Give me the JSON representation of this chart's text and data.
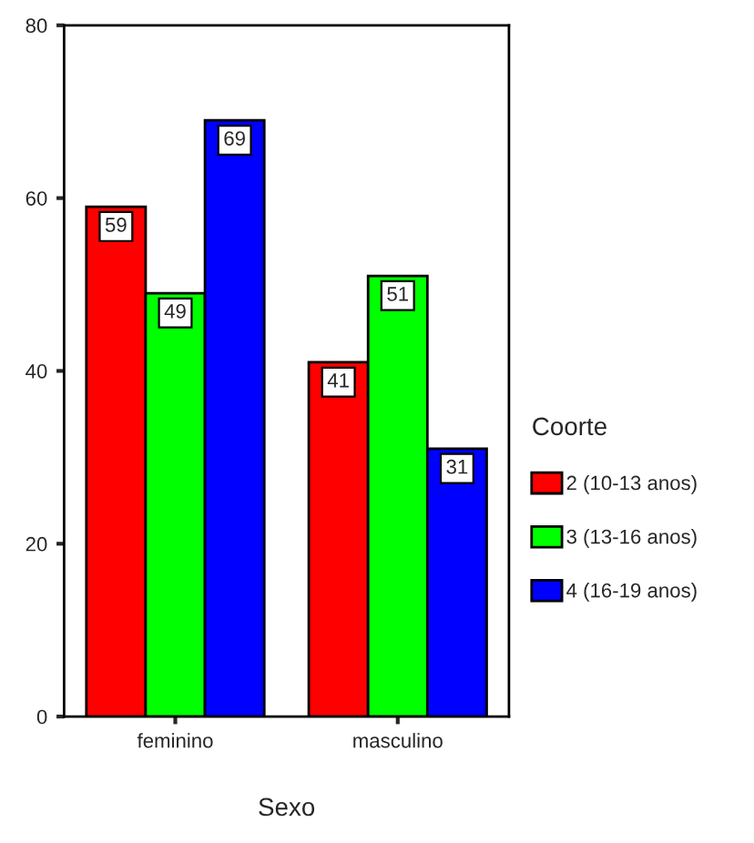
{
  "chart_data": {
    "type": "bar",
    "xlabel": "Sexo",
    "legend_title": "Coorte",
    "categories": [
      "feminino",
      "masculino"
    ],
    "series": [
      {
        "name": "2 (10-13 anos)",
        "color": "#ff0000",
        "values": [
          59,
          41
        ]
      },
      {
        "name": "3 (13-16 anos)",
        "color": "#00ff00",
        "values": [
          49,
          51
        ]
      },
      {
        "name": "4 (16-19 anos)",
        "color": "#0000ff",
        "values": [
          69,
          31
        ]
      }
    ],
    "ylim": [
      0,
      80
    ],
    "yticks": [
      0,
      20,
      40,
      60,
      80
    ],
    "grid": false,
    "legend": "right",
    "data_labels": true
  }
}
